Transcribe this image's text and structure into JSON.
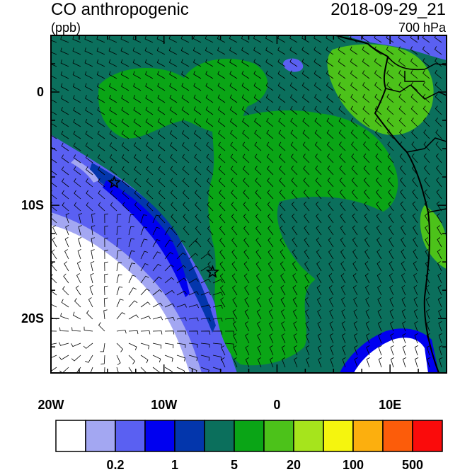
{
  "title": "CO anthropogenic",
  "units": "(ppb)",
  "datetime": "2018-09-29_21",
  "level": "700 hPa",
  "axes": {
    "x_ticks": [
      "20W",
      "10W",
      "0",
      "10E"
    ],
    "y_ticks": [
      "0",
      "10S",
      "20S"
    ],
    "lon_range": [
      -20,
      15
    ],
    "lat_range": [
      -24.8,
      5
    ]
  },
  "markers": [
    {
      "name": "station-star",
      "lon": -14.4,
      "lat": -8.0
    },
    {
      "name": "station-star",
      "lon": -5.7,
      "lat": -15.9
    }
  ],
  "colorbar": {
    "colors": [
      "#ffffff",
      "#a3a7f2",
      "#5a60f2",
      "#0000f0",
      "#0336ac",
      "#0b6f5c",
      "#0aa516",
      "#4cc21a",
      "#a6e41c",
      "#f5f50e",
      "#fcaf0e",
      "#fc5c0a",
      "#fa0b0b"
    ],
    "labels": [
      "0.2",
      "1",
      "5",
      "20",
      "100",
      "500"
    ]
  },
  "colors": {
    "ocean_clean": "#ffffff",
    "low": "#a3a7f2",
    "mid_low": "#5a60f2",
    "teal": "#0b6f5c",
    "green": "#0aa516",
    "light_green": "#4cc21a"
  }
}
